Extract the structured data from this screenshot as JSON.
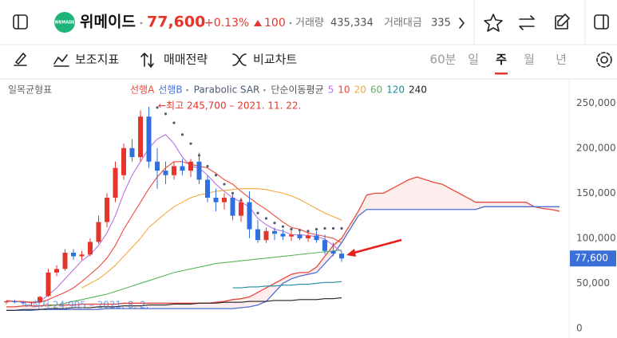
{
  "header": {
    "logo_text": "WEMADE",
    "name": "위메이드",
    "price": "77,600",
    "change_pct": "+0.13%",
    "change": "100",
    "volume_label": "거래량",
    "volume": "435,334",
    "amount_label": "거래대금",
    "amount": "335"
  },
  "toolbar": {
    "tools": [
      "보조지표",
      "매매전략",
      "비교차트"
    ],
    "periods": [
      "60분",
      "일",
      "주",
      "월",
      "년"
    ],
    "selected_period": 2
  },
  "chart_data": {
    "type": "candlestick",
    "indicator_label": "일목균형표",
    "ma_label": "단순이동평균",
    "ylim": [
      0,
      275000
    ],
    "yticks": [
      0,
      {
        "value": 50000,
        "label": "50,000"
      },
      {
        "value": 100000,
        "label": "100,000"
      },
      {
        "value": 150000,
        "label": "150,000"
      },
      {
        "value": 200000,
        "label": "200,000"
      },
      {
        "value": 250000,
        "label": "250,000"
      }
    ],
    "up_color": "#e5352b",
    "down_color": "#2f6fdf",
    "ohlc": {
      "open": [
        29000,
        30000,
        29000,
        28000,
        29000,
        36000,
        62000,
        66000,
        84000,
        80000,
        82000,
        96000,
        118000,
        145000,
        170000,
        200000,
        190000,
        235000,
        185000,
        175000,
        170000,
        180000,
        175000,
        185000,
        165000,
        145000,
        140000,
        145000,
        125000,
        140000,
        110000,
        98000,
        108000,
        105000,
        102000,
        104000,
        100000,
        103000,
        98000,
        86000,
        83000
      ],
      "high": [
        31000,
        32000,
        30000,
        30000,
        36000,
        66000,
        70000,
        88000,
        88000,
        86000,
        100000,
        125000,
        150000,
        185000,
        205000,
        210000,
        242000,
        245700,
        200000,
        185000,
        185000,
        188000,
        188000,
        195000,
        170000,
        155000,
        150000,
        150000,
        145000,
        152000,
        120000,
        112000,
        112000,
        110000,
        108000,
        110000,
        106000,
        108000,
        104000,
        95000,
        86000
      ],
      "low": [
        27000,
        28000,
        26000,
        24905,
        28000,
        35000,
        58000,
        64000,
        76000,
        76000,
        80000,
        94000,
        112000,
        140000,
        165000,
        185000,
        185000,
        178000,
        155000,
        160000,
        165000,
        170000,
        168000,
        160000,
        140000,
        130000,
        132000,
        120000,
        118000,
        100000,
        95000,
        95000,
        98000,
        98000,
        97000,
        98000,
        96000,
        95000,
        82000,
        80000,
        74000
      ],
      "close": [
        30000,
        29000,
        28000,
        29000,
        35000,
        62000,
        66000,
        84000,
        80000,
        82000,
        96000,
        118000,
        145000,
        178000,
        200000,
        190000,
        235000,
        185000,
        175000,
        170000,
        180000,
        175000,
        185000,
        165000,
        145000,
        140000,
        145000,
        125000,
        140000,
        110000,
        98000,
        108000,
        105000,
        102000,
        104000,
        100000,
        103000,
        98000,
        86000,
        83000,
        77600
      ]
    },
    "series": [
      {
        "name": "선행A",
        "kind": "span",
        "color": "#e5483e",
        "values": [
          24000,
          24000,
          25000,
          25000,
          25000,
          26000,
          26000,
          26000,
          26000,
          27000,
          27000,
          27000,
          27000,
          27000,
          28000,
          28000,
          28000,
          28000,
          28000,
          28000,
          28000,
          28000,
          28000,
          28000,
          28000,
          29000,
          30000,
          32000,
          33000,
          35000,
          40000,
          45000,
          50000,
          55000,
          60000,
          62000,
          62000,
          68000,
          80000,
          92000,
          100000,
          115000,
          130000,
          148000,
          150000,
          150000,
          155000,
          160000,
          165000,
          168000,
          165000,
          162000,
          160000,
          155000,
          150000,
          145000,
          140000,
          140000,
          140000,
          140000,
          140000,
          140000,
          140000,
          135000,
          133000,
          132000,
          130000
        ]
      },
      {
        "name": "선행B",
        "kind": "span",
        "color": "#4b6fd6",
        "values": [
          20000,
          20000,
          20000,
          20000,
          21000,
          21000,
          21000,
          21000,
          21000,
          21000,
          21000,
          21000,
          22000,
          22000,
          22000,
          22000,
          22000,
          22000,
          22000,
          22000,
          22000,
          22000,
          22000,
          22000,
          22000,
          22000,
          22000,
          22000,
          23000,
          24000,
          26000,
          30000,
          40000,
          50000,
          55000,
          58000,
          60000,
          62000,
          72000,
          82000,
          95000,
          110000,
          125000,
          132000,
          132000,
          132000,
          132000,
          132000,
          132000,
          132000,
          132000,
          132000,
          132000,
          132000,
          132000,
          132000,
          132000,
          135000,
          135000,
          135000,
          135000,
          135000,
          135000,
          135000,
          135000,
          135000,
          135000
        ]
      },
      {
        "name": "Parabolic SAR",
        "kind": "sar",
        "color": "#4e5a70",
        "values": [
          null,
          null,
          null,
          null,
          null,
          null,
          null,
          null,
          null,
          null,
          null,
          null,
          null,
          null,
          null,
          null,
          null,
          null,
          245000,
          238000,
          228000,
          215000,
          205000,
          192000,
          180000,
          170000,
          160000,
          150000,
          142000,
          135000,
          128000,
          122000,
          117000,
          113000,
          110000,
          109000,
          108000,
          110000,
          111000,
          111000,
          111000
        ]
      },
      {
        "name": "5",
        "kind": "ma",
        "color": "#b872e0",
        "values": [
          30000,
          30000,
          29000,
          29000,
          30000,
          37000,
          45000,
          55000,
          65000,
          75000,
          82000,
          92000,
          106000,
          125000,
          150000,
          170000,
          185000,
          200000,
          210000,
          215000,
          205000,
          190000,
          180000,
          178000,
          170000,
          160000,
          152000,
          145000,
          140000,
          135000,
          122000,
          115000,
          110000,
          108000,
          104000,
          104000,
          103000,
          102000,
          99000,
          92000,
          85000
        ]
      },
      {
        "name": "10",
        "kind": "ma",
        "color": "#ef4a3e",
        "values": [
          31000,
          30000,
          30000,
          29000,
          29000,
          32000,
          36000,
          40000,
          45000,
          52000,
          60000,
          68000,
          78000,
          92000,
          110000,
          125000,
          140000,
          155000,
          168000,
          178000,
          185000,
          185000,
          182000,
          180000,
          178000,
          172000,
          165000,
          160000,
          152000,
          145000,
          138000,
          132000,
          125000,
          118000,
          112000,
          110000,
          106000,
          104000,
          102000,
          100000,
          95000
        ]
      },
      {
        "name": "20",
        "kind": "ma",
        "color": "#f2a93b",
        "values": [
          null,
          null,
          null,
          null,
          null,
          null,
          null,
          null,
          null,
          45000,
          50000,
          55000,
          62000,
          70000,
          80000,
          90000,
          100000,
          112000,
          120000,
          128000,
          135000,
          140000,
          145000,
          148000,
          150000,
          152000,
          153000,
          154000,
          155000,
          155000,
          155000,
          154000,
          152000,
          150000,
          147000,
          143000,
          138000,
          133000,
          128000,
          124000,
          120000
        ]
      },
      {
        "name": "60",
        "kind": "ma",
        "color": "#58b55a",
        "values": [
          null,
          null,
          null,
          null,
          null,
          25000,
          26000,
          28000,
          30000,
          32000,
          34000,
          36000,
          38000,
          41000,
          44000,
          47000,
          50000,
          53000,
          56000,
          59000,
          62000,
          64000,
          66000,
          68000,
          70000,
          72000,
          73000,
          74000,
          75000,
          76000,
          77000,
          78000,
          79000,
          80000,
          81000,
          82000,
          83000,
          84000,
          85000,
          86000,
          87000
        ]
      },
      {
        "name": "120",
        "kind": "ma",
        "color": "#1e8c9c",
        "values": [
          null,
          null,
          null,
          null,
          null,
          null,
          null,
          null,
          null,
          null,
          null,
          null,
          null,
          null,
          null,
          null,
          null,
          null,
          null,
          null,
          null,
          null,
          null,
          null,
          null,
          null,
          null,
          45000,
          45000,
          46000,
          46000,
          47000,
          47000,
          48000,
          48000,
          49000,
          49000,
          50000,
          51000,
          51000,
          52000
        ]
      },
      {
        "name": "240",
        "kind": "ma",
        "color": "#222222",
        "values": [
          20000,
          20000,
          21000,
          21000,
          21000,
          22000,
          22000,
          22000,
          23000,
          23000,
          23000,
          24000,
          24000,
          24000,
          25000,
          25000,
          25000,
          26000,
          26000,
          26000,
          27000,
          27000,
          27000,
          28000,
          28000,
          28000,
          29000,
          29000,
          29000,
          30000,
          30000,
          30000,
          31000,
          31000,
          31000,
          32000,
          32000,
          32000,
          33000,
          33000,
          34000
        ]
      }
    ],
    "annotations": [
      {
        "text": "←최고 245,700 – 2021. 11. 22.",
        "color": "#e5352b"
      },
      {
        "text": "←최저 24,905 – 2021. 8. 2.",
        "color": "#4a7fd0"
      }
    ],
    "price_label": {
      "value": 77600,
      "label": "77,600"
    },
    "price_label_color": "#3b6fd8"
  }
}
